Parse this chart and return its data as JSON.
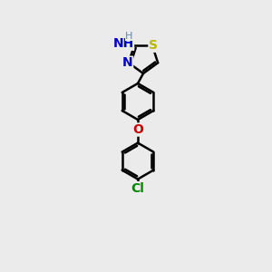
{
  "bg_color": "#ebebeb",
  "bond_color": "#000000",
  "bond_width": 1.8,
  "S_color": "#b8b800",
  "N_color": "#0000cc",
  "O_color": "#cc0000",
  "Cl_color": "#008800",
  "H_color": "#6688aa",
  "font_size": 10,
  "small_font_size": 8,
  "xlim": [
    0,
    10
  ],
  "ylim": [
    0,
    15
  ],
  "figsize": [
    3.0,
    3.0
  ],
  "dpi": 100
}
